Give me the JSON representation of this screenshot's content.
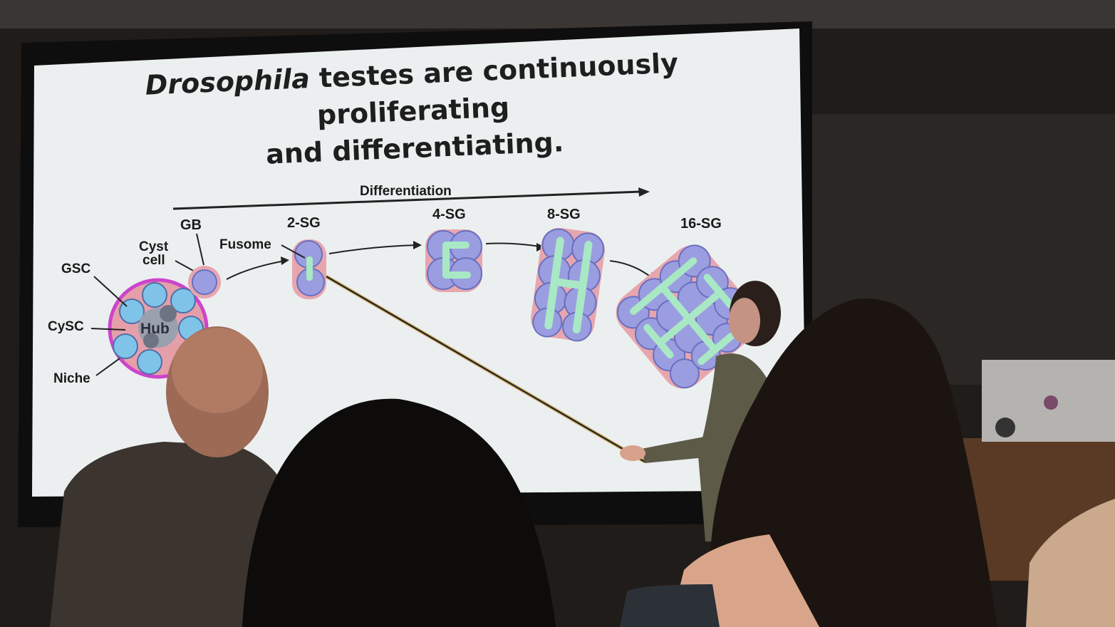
{
  "slide": {
    "title_italic": "Drosophila",
    "title_rest": "testes are continuously proliferating",
    "title_line2": "and differentiating."
  },
  "diagram": {
    "arrow_label": "Differentiation",
    "stages": [
      "GB",
      "2-SG",
      "4-SG",
      "8-SG",
      "16-SG"
    ],
    "labels": {
      "cyst_line1": "Cyst",
      "cyst_line2": "cell",
      "fusome": "Fusome",
      "gsc": "GSC",
      "cysc": "CySC",
      "niche": "Niche",
      "hub": "Hub"
    }
  },
  "colors": {
    "screen": "#eceff0",
    "germ_cell": "#9a9ee0",
    "cyst": "#e7a6ae",
    "fusome": "#a9e8c4",
    "niche_border": "#cc44cc",
    "gsc_cell": "#7fc4e8",
    "hub": "#6e7384"
  }
}
